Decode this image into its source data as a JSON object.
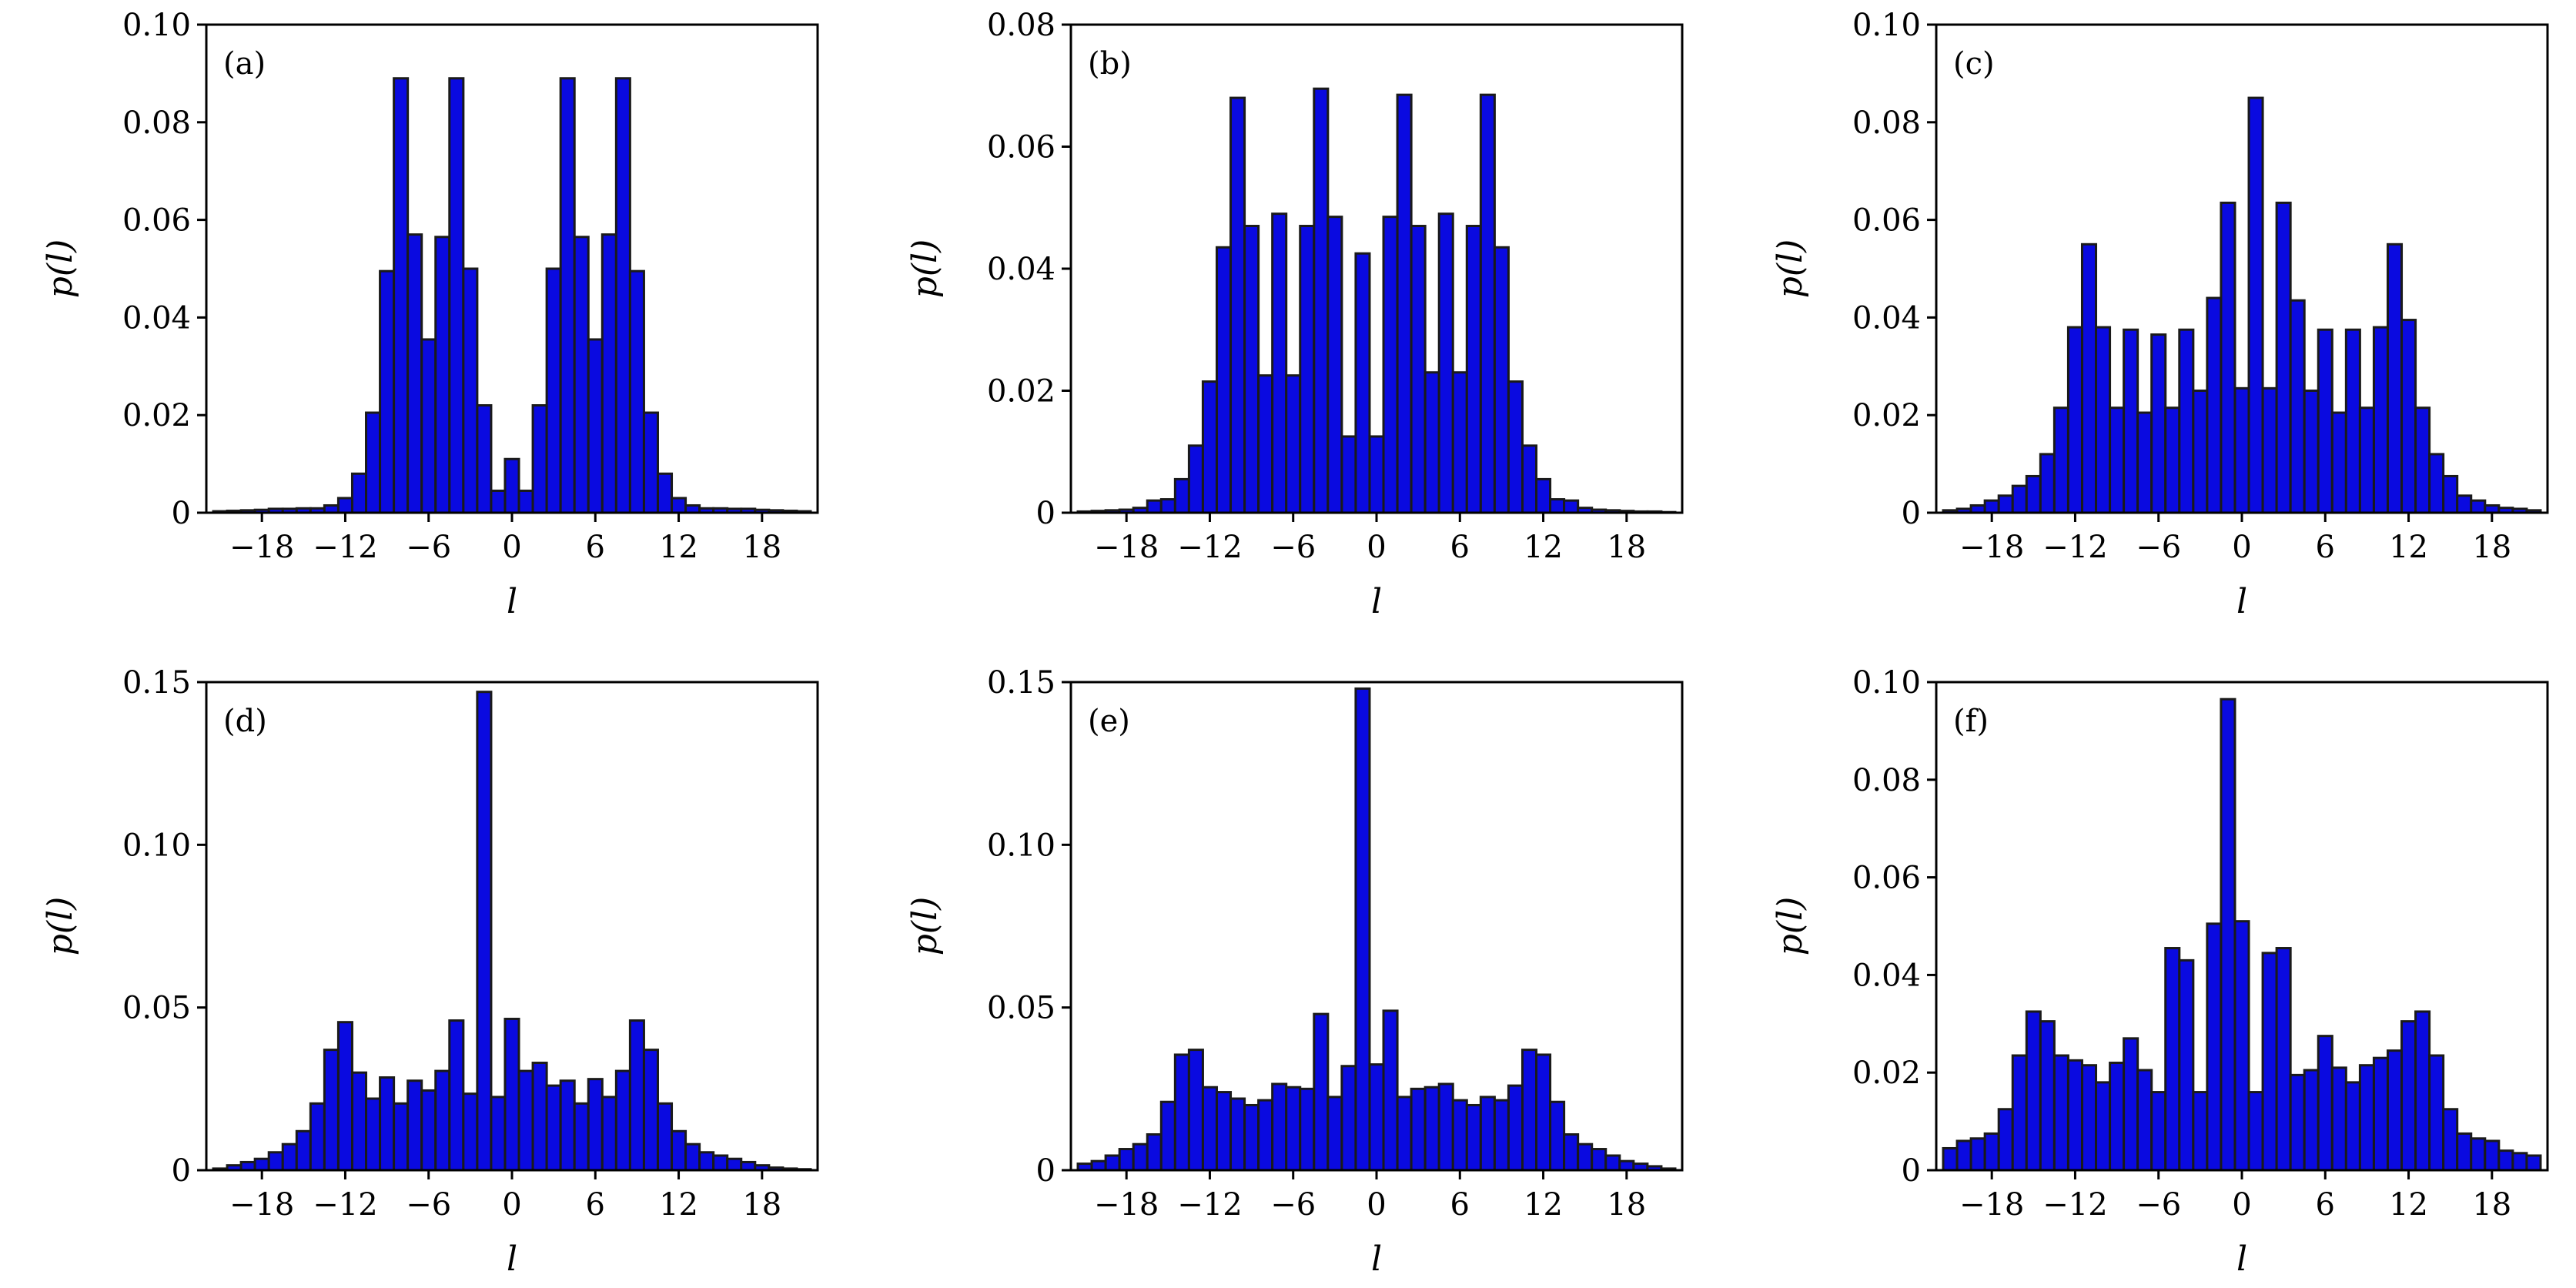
{
  "colors": {
    "bar_fill": "#0a0ae0",
    "bar_edge": "#1a1a1a",
    "axes": "#000000",
    "background": "#ffffff"
  },
  "chart_data": [
    {
      "type": "bar",
      "panel_label": "(a)",
      "xlabel": "l",
      "ylabel": "p(l)",
      "xlim": [
        -22,
        22
      ],
      "ylim": [
        0,
        0.1
      ],
      "xticks": [
        -18,
        -12,
        -6,
        0,
        6,
        12,
        18
      ],
      "yticks": [
        0,
        0.02,
        0.04,
        0.06,
        0.08,
        0.1
      ],
      "ytick_labels": [
        "0",
        "0.02",
        "0.04",
        "0.06",
        "0.08",
        "0.10"
      ],
      "xtick_labels": [
        "−18",
        "−12",
        "−6",
        "0",
        "6",
        "12",
        "18"
      ],
      "x": [
        -21,
        -20,
        -19,
        -18,
        -17,
        -16,
        -15,
        -14,
        -13,
        -12,
        -11,
        -10,
        -9,
        -8,
        -7,
        -6,
        -5,
        -4,
        -3,
        -2,
        -1,
        0,
        1,
        2,
        3,
        4,
        5,
        6,
        7,
        8,
        9,
        10,
        11,
        12,
        13,
        14,
        15,
        16,
        17,
        18,
        19,
        20,
        21
      ],
      "values": [
        0.0003,
        0.0004,
        0.0005,
        0.0006,
        0.0008,
        0.0008,
        0.0009,
        0.0009,
        0.0015,
        0.003,
        0.008,
        0.0205,
        0.0495,
        0.089,
        0.057,
        0.0355,
        0.0565,
        0.089,
        0.05,
        0.022,
        0.0045,
        0.011,
        0.0045,
        0.022,
        0.05,
        0.089,
        0.0565,
        0.0355,
        0.057,
        0.089,
        0.0495,
        0.0205,
        0.008,
        0.003,
        0.0015,
        0.0009,
        0.0009,
        0.0008,
        0.0008,
        0.0006,
        0.0005,
        0.0004,
        0.0003
      ]
    },
    {
      "type": "bar",
      "panel_label": "(b)",
      "xlabel": "l",
      "ylabel": "p(l)",
      "xlim": [
        -22,
        22
      ],
      "ylim": [
        0,
        0.08
      ],
      "xticks": [
        -18,
        -12,
        -6,
        0,
        6,
        12,
        18
      ],
      "yticks": [
        0,
        0.02,
        0.04,
        0.06,
        0.08
      ],
      "ytick_labels": [
        "0",
        "0.02",
        "0.04",
        "0.06",
        "0.08"
      ],
      "xtick_labels": [
        "−18",
        "−12",
        "−6",
        "0",
        "6",
        "12",
        "18"
      ],
      "x": [
        -21,
        -20,
        -19,
        -18,
        -17,
        -16,
        -15,
        -14,
        -13,
        -12,
        -11,
        -10,
        -9,
        -8,
        -7,
        -6,
        -5,
        -4,
        -3,
        -2,
        -1,
        0,
        1,
        2,
        3,
        4,
        5,
        6,
        7,
        8,
        9,
        10,
        11,
        12,
        13,
        14,
        15,
        16,
        17,
        18,
        19,
        20,
        21
      ],
      "values": [
        0.0002,
        0.0003,
        0.0004,
        0.0005,
        0.0008,
        0.002,
        0.0022,
        0.0055,
        0.011,
        0.0215,
        0.0435,
        0.068,
        0.047,
        0.0225,
        0.049,
        0.0225,
        0.047,
        0.0695,
        0.0485,
        0.0125,
        0.0425,
        0.0125,
        0.0485,
        0.0685,
        0.047,
        0.023,
        0.049,
        0.023,
        0.047,
        0.0685,
        0.0435,
        0.0215,
        0.011,
        0.0055,
        0.0022,
        0.002,
        0.0008,
        0.0005,
        0.0004,
        0.0003,
        0.0002,
        0.0002,
        0.0001
      ]
    },
    {
      "type": "bar",
      "panel_label": "(c)",
      "xlabel": "l",
      "ylabel": "p(l)",
      "xlim": [
        -22,
        22
      ],
      "ylim": [
        0,
        0.1
      ],
      "xticks": [
        -18,
        -12,
        -6,
        0,
        6,
        12,
        18
      ],
      "yticks": [
        0,
        0.02,
        0.04,
        0.06,
        0.08,
        0.1
      ],
      "ytick_labels": [
        "0",
        "0.02",
        "0.04",
        "0.06",
        "0.08",
        "0.10"
      ],
      "xtick_labels": [
        "−18",
        "−12",
        "−6",
        "0",
        "6",
        "12",
        "18"
      ],
      "x": [
        -21,
        -20,
        -19,
        -18,
        -17,
        -16,
        -15,
        -14,
        -13,
        -12,
        -11,
        -10,
        -9,
        -8,
        -7,
        -6,
        -5,
        -4,
        -3,
        -2,
        -1,
        0,
        1,
        2,
        3,
        4,
        5,
        6,
        7,
        8,
        9,
        10,
        11,
        12,
        13,
        14,
        15,
        16,
        17,
        18,
        19,
        20,
        21
      ],
      "values": [
        0.0005,
        0.0008,
        0.0015,
        0.0025,
        0.0035,
        0.0055,
        0.0075,
        0.012,
        0.0215,
        0.038,
        0.055,
        0.038,
        0.0215,
        0.0375,
        0.0205,
        0.0365,
        0.0215,
        0.0375,
        0.025,
        0.044,
        0.0635,
        0.0255,
        0.085,
        0.0255,
        0.0635,
        0.0435,
        0.025,
        0.0375,
        0.0205,
        0.0375,
        0.0215,
        0.038,
        0.055,
        0.0395,
        0.0215,
        0.012,
        0.0075,
        0.0035,
        0.0025,
        0.0015,
        0.001,
        0.0008,
        0.0005
      ]
    },
    {
      "type": "bar",
      "panel_label": "(d)",
      "xlabel": "l",
      "ylabel": "p(l)",
      "xlim": [
        -22,
        22
      ],
      "ylim": [
        0,
        0.15
      ],
      "xticks": [
        -18,
        -12,
        -6,
        0,
        6,
        12,
        18
      ],
      "yticks": [
        0,
        0.05,
        0.1,
        0.15
      ],
      "ytick_labels": [
        "0",
        "0.05",
        "0.10",
        "0.15"
      ],
      "xtick_labels": [
        "−18",
        "−12",
        "−6",
        "0",
        "6",
        "12",
        "18"
      ],
      "x": [
        -21,
        -20,
        -19,
        -18,
        -17,
        -16,
        -15,
        -14,
        -13,
        -12,
        -11,
        -10,
        -9,
        -8,
        -7,
        -6,
        -5,
        -4,
        -3,
        -2,
        -1,
        0,
        1,
        2,
        3,
        4,
        5,
        6,
        7,
        8,
        9,
        10,
        11,
        12,
        13,
        14,
        15,
        16,
        17,
        18,
        19,
        20,
        21
      ],
      "values": [
        0.0005,
        0.0015,
        0.0025,
        0.0035,
        0.0055,
        0.008,
        0.012,
        0.0205,
        0.037,
        0.0455,
        0.03,
        0.022,
        0.0285,
        0.0205,
        0.0275,
        0.0245,
        0.0305,
        0.046,
        0.0235,
        0.147,
        0.0225,
        0.0465,
        0.0305,
        0.033,
        0.026,
        0.0275,
        0.0205,
        0.028,
        0.0225,
        0.0305,
        0.046,
        0.037,
        0.0205,
        0.012,
        0.008,
        0.0055,
        0.0045,
        0.0035,
        0.0025,
        0.0015,
        0.0008,
        0.0005,
        0.0003
      ]
    },
    {
      "type": "bar",
      "panel_label": "(e)",
      "xlabel": "l",
      "ylabel": "p(l)",
      "xlim": [
        -22,
        22
      ],
      "ylim": [
        0,
        0.15
      ],
      "xticks": [
        -18,
        -12,
        -6,
        0,
        6,
        12,
        18
      ],
      "yticks": [
        0,
        0.05,
        0.1,
        0.15
      ],
      "ytick_labels": [
        "0",
        "0.05",
        "0.10",
        "0.15"
      ],
      "xtick_labels": [
        "−18",
        "−12",
        "−6",
        "0",
        "6",
        "12",
        "18"
      ],
      "x": [
        -21,
        -20,
        -19,
        -18,
        -17,
        -16,
        -15,
        -14,
        -13,
        -12,
        -11,
        -10,
        -9,
        -8,
        -7,
        -6,
        -5,
        -4,
        -3,
        -2,
        -1,
        0,
        1,
        2,
        3,
        4,
        5,
        6,
        7,
        8,
        9,
        10,
        11,
        12,
        13,
        14,
        15,
        16,
        17,
        18,
        19,
        20,
        21
      ],
      "values": [
        0.002,
        0.0028,
        0.0045,
        0.0065,
        0.008,
        0.011,
        0.021,
        0.0355,
        0.037,
        0.0255,
        0.024,
        0.022,
        0.02,
        0.0215,
        0.0265,
        0.0255,
        0.025,
        0.048,
        0.0225,
        0.032,
        0.148,
        0.0325,
        0.049,
        0.0225,
        0.025,
        0.0255,
        0.0265,
        0.0215,
        0.02,
        0.0225,
        0.0215,
        0.026,
        0.037,
        0.0355,
        0.021,
        0.011,
        0.008,
        0.0065,
        0.0045,
        0.0028,
        0.002,
        0.0012,
        0.0005
      ]
    },
    {
      "type": "bar",
      "panel_label": "(f)",
      "xlabel": "l",
      "ylabel": "p(l)",
      "xlim": [
        -22,
        22
      ],
      "ylim": [
        0,
        0.1
      ],
      "xticks": [
        -18,
        -12,
        -6,
        0,
        6,
        12,
        18
      ],
      "yticks": [
        0,
        0.02,
        0.04,
        0.06,
        0.08,
        0.1
      ],
      "ytick_labels": [
        "0",
        "0.02",
        "0.04",
        "0.06",
        "0.08",
        "0.10"
      ],
      "xtick_labels": [
        "−18",
        "−12",
        "−6",
        "0",
        "6",
        "12",
        "18"
      ],
      "x": [
        -21,
        -20,
        -19,
        -18,
        -17,
        -16,
        -15,
        -14,
        -13,
        -12,
        -11,
        -10,
        -9,
        -8,
        -7,
        -6,
        -5,
        -4,
        -3,
        -2,
        -1,
        0,
        1,
        2,
        3,
        4,
        5,
        6,
        7,
        8,
        9,
        10,
        11,
        12,
        13,
        14,
        15,
        16,
        17,
        18,
        19,
        20,
        21
      ],
      "values": [
        0.0045,
        0.006,
        0.0065,
        0.0075,
        0.0125,
        0.0235,
        0.0325,
        0.0305,
        0.0235,
        0.0225,
        0.0215,
        0.018,
        0.022,
        0.027,
        0.0205,
        0.016,
        0.0455,
        0.043,
        0.016,
        0.0505,
        0.0965,
        0.051,
        0.016,
        0.0445,
        0.0455,
        0.0195,
        0.0205,
        0.0275,
        0.021,
        0.018,
        0.0215,
        0.023,
        0.0245,
        0.0305,
        0.0325,
        0.0235,
        0.0125,
        0.0075,
        0.0065,
        0.006,
        0.004,
        0.0035,
        0.003
      ]
    }
  ]
}
